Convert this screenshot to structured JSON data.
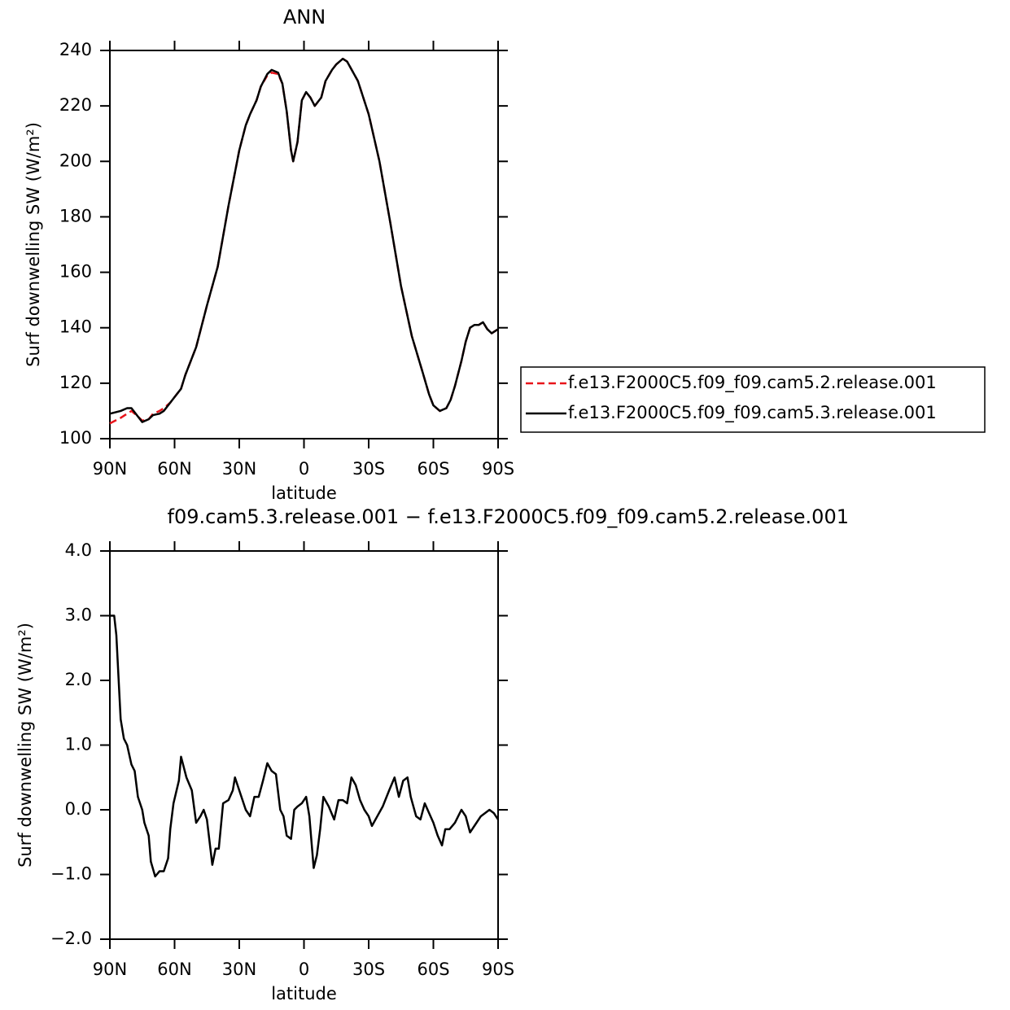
{
  "chart_data": [
    {
      "type": "line",
      "title": "ANN",
      "xlabel": "latitude",
      "ylabel": "Surf downwelling SW (W/m²)",
      "xlim": [
        90,
        -90
      ],
      "xticks": [
        {
          "value": 90,
          "label": "90N"
        },
        {
          "value": 60,
          "label": "60N"
        },
        {
          "value": 30,
          "label": "30N"
        },
        0,
        {
          "value": -30,
          "label": "30S"
        },
        {
          "value": -60,
          "label": "60S"
        },
        {
          "value": -90,
          "label": "90S"
        }
      ],
      "ylim": [
        100,
        240
      ],
      "yticks": [
        100,
        120,
        140,
        160,
        180,
        200,
        220,
        240
      ],
      "legend": "right",
      "x": [
        90,
        85,
        82,
        80,
        77,
        75,
        72,
        70,
        67,
        65,
        62,
        60,
        57,
        55,
        50,
        45,
        40,
        35,
        30,
        27,
        25,
        22,
        20,
        17,
        15,
        12,
        10,
        8,
        6,
        5,
        3,
        1,
        -1,
        -3,
        -5,
        -8,
        -10,
        -13,
        -15,
        -18,
        -20,
        -25,
        -30,
        -35,
        -40,
        -45,
        -50,
        -55,
        -58,
        -60,
        -63,
        -66,
        -68,
        -70,
        -73,
        -75,
        -77,
        -79,
        -81,
        -83,
        -85,
        -87,
        -90
      ],
      "series": [
        {
          "name": "f.e13.F2000C5.f09_f09.cam5.2.release.001",
          "color": "#e8141b",
          "dash": true,
          "values": [
            105.5,
            107.5,
            109,
            110,
            108,
            106.5,
            107,
            109,
            110,
            111,
            113,
            115,
            118,
            123,
            133,
            148,
            162,
            184,
            204,
            213,
            217,
            222,
            227,
            231,
            232,
            231.5,
            228,
            218,
            204,
            200,
            207,
            222,
            225,
            223,
            220,
            223,
            229,
            233,
            235,
            237,
            236,
            229,
            217,
            200,
            178,
            155,
            137,
            124,
            116,
            112,
            110,
            111,
            114,
            119,
            128,
            135,
            140,
            141,
            141,
            142,
            139.5,
            138,
            139.5
          ]
        },
        {
          "name": "f.e13.F2000C5.f09_f09.cam5.3.release.001",
          "color": "#000000",
          "dash": false,
          "values": [
            109,
            110,
            111,
            111,
            108,
            106,
            107,
            108.5,
            109,
            110,
            113,
            115,
            118,
            123,
            133,
            148,
            162,
            184,
            204,
            213,
            217,
            222,
            227,
            231.5,
            233,
            232,
            228,
            218,
            204,
            200,
            207,
            222,
            225,
            223,
            220,
            223,
            229,
            233,
            235,
            237,
            236,
            229,
            217,
            200,
            178,
            155,
            137,
            124,
            116,
            112,
            110,
            111,
            114,
            119,
            128,
            135,
            140,
            141,
            141,
            142,
            139.5,
            138,
            139.5
          ]
        }
      ]
    },
    {
      "type": "line",
      "title": "f09.cam5.3.release.001 − f.e13.F2000C5.f09_f09.cam5.2.release.001",
      "xlabel": "latitude",
      "ylabel": "Surf downwelling SW (W/m²)",
      "xlim": [
        90,
        -90
      ],
      "xticks": [
        {
          "value": 90,
          "label": "90N"
        },
        {
          "value": 60,
          "label": "60N"
        },
        {
          "value": 30,
          "label": "30N"
        },
        0,
        {
          "value": -30,
          "label": "30S"
        },
        {
          "value": -60,
          "label": "60S"
        },
        {
          "value": -90,
          "label": "90S"
        }
      ],
      "ylim": [
        -2,
        4
      ],
      "yticks": [
        {
          "value": -2,
          "label": "−2.0"
        },
        {
          "value": -1,
          "label": "−1.0"
        },
        {
          "value": 0,
          "label": "0.0"
        },
        {
          "value": 1,
          "label": "1.0"
        },
        {
          "value": 2,
          "label": "2.0"
        },
        {
          "value": 3,
          "label": "3.0"
        },
        {
          "value": 4,
          "label": "4.0"
        }
      ],
      "x": [
        90,
        88,
        87,
        85,
        83.5,
        82,
        80,
        78.5,
        77,
        75,
        74,
        72,
        71,
        69,
        67,
        65,
        63,
        62,
        60.5,
        58,
        57,
        54.5,
        52,
        50,
        48,
        46.5,
        45,
        42.5,
        41,
        39.5,
        37.5,
        35,
        33,
        32,
        30,
        27,
        25,
        23,
        21,
        19,
        17,
        15,
        13,
        11,
        9.5,
        8,
        6,
        4.5,
        3,
        1,
        -1,
        -2.5,
        -4.5,
        -6,
        -7.5,
        -9,
        -11.5,
        -14,
        -16,
        -18,
        -20,
        -22,
        -24,
        -26,
        -28,
        -30,
        -31.5,
        -34,
        -36.5,
        -39.5,
        -42,
        -44,
        -46,
        -48,
        -49.5,
        -52,
        -54,
        -56,
        -58,
        -60,
        -62,
        -64,
        -65.5,
        -67.5,
        -70,
        -71.5,
        -73,
        -75,
        -77,
        -79,
        -82,
        -84,
        -86,
        -88,
        -90
      ],
      "series": [
        {
          "color": "#000000",
          "dash": false,
          "values": [
            3.0,
            3.0,
            2.7,
            1.4,
            1.1,
            1.0,
            0.7,
            0.6,
            0.2,
            0.0,
            -0.2,
            -0.4,
            -0.8,
            -1.03,
            -0.95,
            -0.95,
            -0.75,
            -0.3,
            0.1,
            0.45,
            0.82,
            0.5,
            0.3,
            -0.2,
            -0.1,
            0.0,
            -0.15,
            -0.85,
            -0.6,
            -0.6,
            0.1,
            0.15,
            0.3,
            0.5,
            0.3,
            0.0,
            -0.1,
            0.2,
            0.2,
            0.45,
            0.72,
            0.6,
            0.55,
            0.0,
            -0.1,
            -0.4,
            -0.45,
            0.0,
            0.05,
            0.1,
            0.2,
            -0.1,
            -0.9,
            -0.7,
            -0.3,
            0.2,
            0.05,
            -0.15,
            0.15,
            0.15,
            0.1,
            0.5,
            0.38,
            0.15,
            0.0,
            -0.1,
            -0.25,
            -0.1,
            0.05,
            0.3,
            0.5,
            0.2,
            0.45,
            0.5,
            0.2,
            -0.1,
            -0.15,
            0.1,
            -0.05,
            -0.2,
            -0.4,
            -0.55,
            -0.3,
            -0.3,
            -0.2,
            -0.1,
            0.0,
            -0.1,
            -0.35,
            -0.25,
            -0.1,
            -0.05,
            0.0,
            -0.05,
            -0.15
          ]
        }
      ]
    }
  ]
}
